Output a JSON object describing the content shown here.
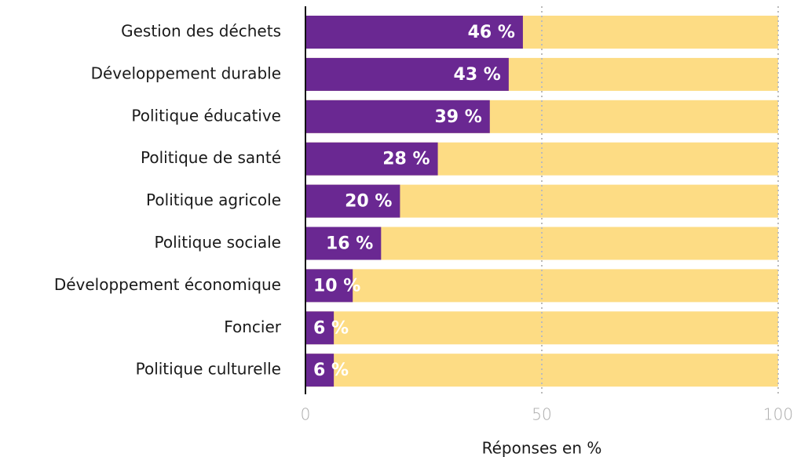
{
  "chart_data": {
    "type": "bar",
    "orientation": "horizontal",
    "categories": [
      "Gestion des déchets",
      "Développement durable",
      "Politique éducative",
      "Politique de santé",
      "Politique agricole",
      "Politique sociale",
      "Développement économique",
      "Foncier",
      "Politique culturelle"
    ],
    "values": [
      46,
      43,
      39,
      28,
      20,
      16,
      10,
      6,
      6
    ],
    "value_labels": [
      "46 %",
      "43 %",
      "39 %",
      "28 %",
      "20 %",
      "16 %",
      "10 %",
      "6 %",
      "6 %"
    ],
    "color": "#6a2892",
    "track_color": "#fddc84",
    "xlim": [
      0,
      100
    ],
    "xticks": [
      0,
      50,
      100
    ],
    "grid": true,
    "xlabel": "Réponses en %"
  }
}
